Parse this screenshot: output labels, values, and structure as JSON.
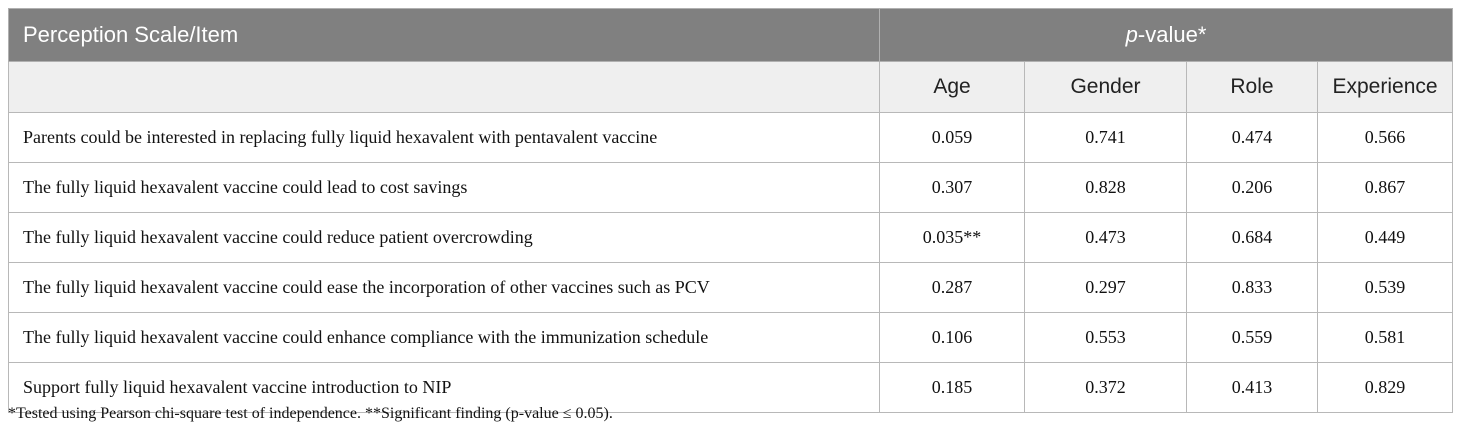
{
  "table": {
    "header_col1": "Perception Scale/Item",
    "header_pvalue_italic": "p",
    "header_pvalue_rest": "-value*",
    "subheaders": [
      "Age",
      "Gender",
      "Role",
      "Experience"
    ],
    "rows": [
      {
        "item": "Parents could be interested in replacing fully liquid hexavalent with pentavalent vaccine",
        "values": [
          "0.059",
          "0.741",
          "0.474",
          "0.566"
        ]
      },
      {
        "item": "The fully liquid hexavalent vaccine could lead to cost savings",
        "values": [
          "0.307",
          "0.828",
          "0.206",
          "0.867"
        ]
      },
      {
        "item": "The fully liquid hexavalent vaccine could reduce patient overcrowding",
        "values": [
          "0.035**",
          "0.473",
          "0.684",
          "0.449"
        ]
      },
      {
        "item": "The fully liquid hexavalent vaccine could ease the incorporation of other vaccines such as PCV",
        "values": [
          "0.287",
          "0.297",
          "0.833",
          "0.539"
        ]
      },
      {
        "item": "The fully liquid hexavalent vaccine could enhance compliance with the immunization schedule",
        "values": [
          "0.106",
          "0.553",
          "0.559",
          "0.581"
        ]
      },
      {
        "item": "Support fully liquid hexavalent vaccine introduction to NIP",
        "values": [
          "0.185",
          "0.372",
          "0.413",
          "0.829"
        ]
      }
    ]
  },
  "footnote": "*Tested using Pearson chi-square test of independence. **Significant finding (p-value ≤ 0.05)."
}
